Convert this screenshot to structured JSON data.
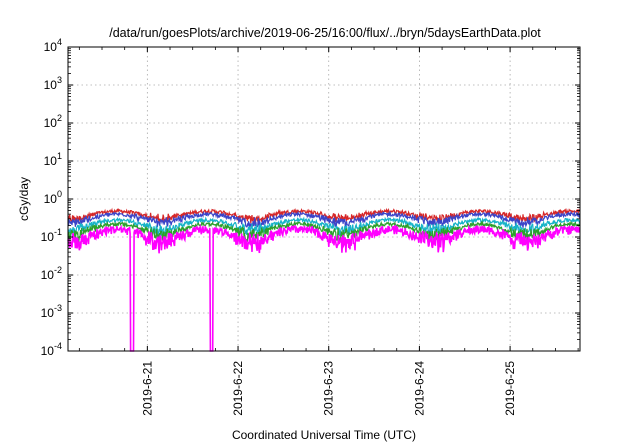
{
  "chart_data": {
    "type": "line",
    "title": "/data/run/goesPlots/archive/2019-06-25/16:00/flux/../bryn/5daysEarthData.plot",
    "xlabel": "Coordinated Universal Time (UTC)",
    "ylabel": "cGy/day",
    "y_scale": "log",
    "ylim": [
      0.0001,
      10000
    ],
    "y_ticks": [
      {
        "base": "10",
        "exp": "-4",
        "value": 0.0001
      },
      {
        "base": "10",
        "exp": "-3",
        "value": 0.001
      },
      {
        "base": "10",
        "exp": "-2",
        "value": 0.01
      },
      {
        "base": "10",
        "exp": "-1",
        "value": 0.1
      },
      {
        "base": "10",
        "exp": "0",
        "value": 1
      },
      {
        "base": "10",
        "exp": "1",
        "value": 10
      },
      {
        "base": "10",
        "exp": "2",
        "value": 100
      },
      {
        "base": "10",
        "exp": "3",
        "value": 1000
      },
      {
        "base": "10",
        "exp": "4",
        "value": 10000
      }
    ],
    "xlim": [
      "2019-06-20 03:00",
      "2019-06-25 18:30"
    ],
    "x_ticks": [
      "2019-6-21",
      "2019-6-22",
      "2019-6-23",
      "2019-6-24",
      "2019-6-25"
    ],
    "grid": true,
    "series": [
      {
        "color": "#d62728",
        "level": 0.48
      },
      {
        "color": "#3b44c8",
        "level": 0.4
      },
      {
        "color": "#17b3c8",
        "level": 0.28
      },
      {
        "color": "#2ca02c",
        "level": 0.22
      },
      {
        "color": "#ff00ff",
        "level": 0.16,
        "dropouts": [
          "2019-06-20 20:00",
          "2019-06-21 17:00"
        ],
        "dropout_value": 0.0001
      }
    ]
  }
}
